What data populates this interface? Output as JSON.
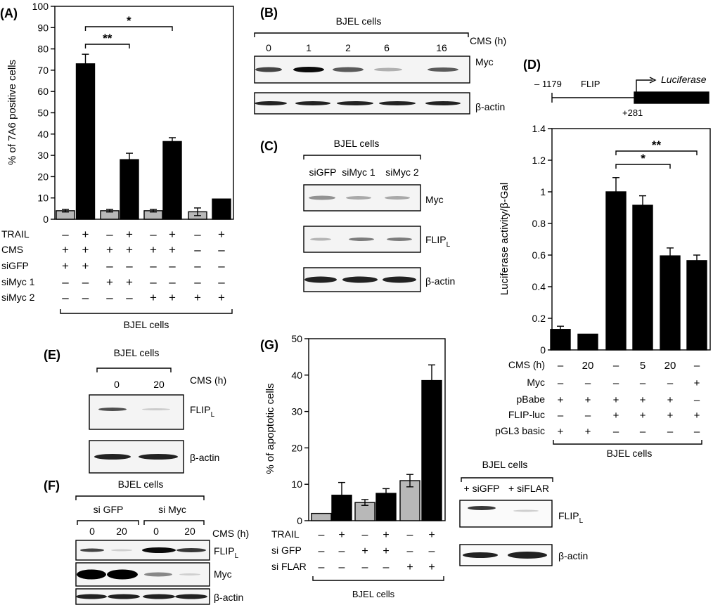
{
  "panels": {
    "A": {
      "letter": "(A)"
    },
    "B": {
      "letter": "(B)"
    },
    "C": {
      "letter": "(C)"
    },
    "D": {
      "letter": "(D)"
    },
    "E": {
      "letter": "(E)"
    },
    "F": {
      "letter": "(F)"
    },
    "G": {
      "letter": "(G)"
    }
  },
  "common": {
    "cell_line": "BJEL cells",
    "beta_actin": "β-actin",
    "myc": "Myc",
    "flip": "FLIP",
    "flip_sub": "L",
    "cms_h": "CMS (h)",
    "plus": "+",
    "minus": "–"
  },
  "panel_b": {
    "times": [
      "0",
      "1",
      "2",
      "6",
      "16"
    ]
  },
  "panel_c": {
    "lanes": [
      "siGFP",
      "siMyc 1",
      "siMyc 2"
    ]
  },
  "panel_d": {
    "promoter_start": "– 1179",
    "promoter_label": "FLIP",
    "promoter_end": "+281",
    "reporter": "Luciferase"
  },
  "panel_e": {
    "times": [
      "0",
      "20"
    ]
  },
  "panel_f": {
    "group1": "si GFP",
    "group2": "si Myc",
    "times": [
      "0",
      "20",
      "0",
      "20"
    ]
  },
  "panel_g_blot": {
    "lanes": [
      "+ siGFP",
      "+ siFLAR"
    ]
  },
  "chart_data": [
    {
      "id": "A",
      "type": "bar",
      "ylabel": "% of 7A6 positive cells",
      "ylim": [
        0,
        100
      ],
      "yticks": [
        0,
        10,
        20,
        30,
        40,
        50,
        60,
        70,
        80,
        90,
        100
      ],
      "values": [
        4,
        73,
        4,
        28,
        4,
        36.5,
        3.5,
        9.5
      ],
      "errors": [
        0.6,
        4.5,
        0.6,
        3,
        0.6,
        1.8,
        1.8,
        0
      ],
      "bar_colors": [
        "#b8b8b8",
        "#000000",
        "#b8b8b8",
        "#000000",
        "#b8b8b8",
        "#000000",
        "#b8b8b8",
        "#000000"
      ],
      "significance": [
        {
          "from": 1,
          "to": 3,
          "label": "**"
        },
        {
          "from": 1,
          "to": 5,
          "label": "*"
        }
      ],
      "conditions": [
        {
          "name": "TRAIL",
          "signs": [
            "–",
            "+",
            "–",
            "+",
            "–",
            "+",
            "–",
            "+"
          ]
        },
        {
          "name": "CMS",
          "signs": [
            "+",
            "+",
            "+",
            "+",
            "+",
            "+",
            "–",
            "–"
          ]
        },
        {
          "name": "siGFP",
          "signs": [
            "+",
            "+",
            "–",
            "–",
            "–",
            "–",
            "–",
            "–"
          ]
        },
        {
          "name": "siMyc 1",
          "signs": [
            "–",
            "–",
            "+",
            "+",
            "–",
            "–",
            "–",
            "–"
          ]
        },
        {
          "name": "siMyc 2",
          "signs": [
            "–",
            "–",
            "–",
            "–",
            "+",
            "+",
            "+",
            "+"
          ]
        }
      ]
    },
    {
      "id": "D",
      "type": "bar",
      "ylabel": "Luciferase activity/β-Gal",
      "ylim": [
        0,
        1.4
      ],
      "yticks": [
        "0",
        "0.2",
        "0.4",
        "0.6",
        "0.8",
        "1",
        "1.2",
        "1.4"
      ],
      "values": [
        0.13,
        0.1,
        1.0,
        0.915,
        0.595,
        0.565
      ],
      "errors": [
        0.02,
        0,
        0.09,
        0.06,
        0.05,
        0.035
      ],
      "significance": [
        {
          "from": 2,
          "to": 4,
          "label": "*"
        },
        {
          "from": 2,
          "to": 5,
          "label": "**"
        }
      ],
      "conditions": [
        {
          "name": "CMS (h)",
          "signs": [
            "–",
            "20",
            "–",
            "5",
            "20",
            "–"
          ]
        },
        {
          "name": "Myc",
          "signs": [
            "–",
            "–",
            "–",
            "–",
            "–",
            "+"
          ]
        },
        {
          "name": "pBabe",
          "signs": [
            "+",
            "+",
            "+",
            "+",
            "+",
            "–"
          ]
        },
        {
          "name": "FLIP-luc",
          "signs": [
            "–",
            "–",
            "+",
            "+",
            "+",
            "+"
          ]
        },
        {
          "name": "pGL3 basic",
          "signs": [
            "+",
            "+",
            "–",
            "–",
            "–",
            "–"
          ]
        }
      ]
    },
    {
      "id": "G",
      "type": "bar",
      "ylabel": "% of apoptotic cells",
      "ylim": [
        0,
        50
      ],
      "yticks": [
        0,
        10,
        20,
        30,
        40,
        50
      ],
      "values": [
        2,
        7,
        5,
        7.5,
        11,
        38.5
      ],
      "errors": [
        0,
        3.5,
        0.8,
        1.3,
        1.7,
        4.3
      ],
      "bar_colors": [
        "#b8b8b8",
        "#000000",
        "#b8b8b8",
        "#000000",
        "#b8b8b8",
        "#000000"
      ],
      "conditions": [
        {
          "name": "TRAIL",
          "signs": [
            "–",
            "+",
            "–",
            "+",
            "–",
            "+"
          ]
        },
        {
          "name": "si GFP",
          "signs": [
            "–",
            "–",
            "+",
            "+",
            "–",
            "–"
          ]
        },
        {
          "name": "si FLAR",
          "signs": [
            "–",
            "–",
            "–",
            "–",
            "+",
            "+"
          ]
        }
      ]
    }
  ]
}
